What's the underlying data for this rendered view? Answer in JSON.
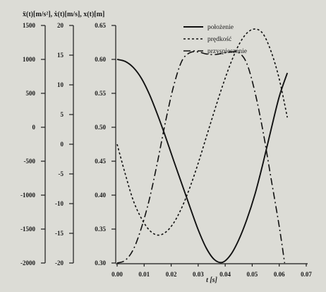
{
  "chart_data": {
    "type": "line",
    "xlabel": "t [s]",
    "ylabel_combined": "ẍ(t)[m/s²], ẋ(t)[m/s], x(t)[m]",
    "xlim": [
      0.0,
      0.07
    ],
    "x_ticks": [
      "0.00",
      "0.01",
      "0.02",
      "0.03",
      "0.04",
      "0.05",
      "0.06",
      "0.07"
    ],
    "axes": [
      {
        "id": "acc",
        "unit": "ẍ(t)[m/s²]",
        "range": [
          -2000,
          1500
        ],
        "ticks": [
          "1500",
          "1000",
          "500",
          "0",
          "-500",
          "-1000",
          "-1500",
          "-2000"
        ]
      },
      {
        "id": "vel",
        "unit": "ẋ(t)[m/s]",
        "range": [
          -20,
          20
        ],
        "ticks": [
          "20",
          "15",
          "10",
          "5",
          "0",
          "-5",
          "-10",
          "-15",
          "-20"
        ]
      },
      {
        "id": "pos",
        "unit": "x(t)[m]",
        "range": [
          0.3,
          0.65
        ],
        "ticks": [
          "0.65",
          "0.60",
          "0.55",
          "0.50",
          "0.45",
          "0.40",
          "0.35",
          "0.30"
        ]
      }
    ],
    "grid": false,
    "legend_position": "top-right",
    "series": [
      {
        "name": "położenie",
        "axis": "pos",
        "style": "solid",
        "x": [
          0.0,
          0.003,
          0.006,
          0.009,
          0.012,
          0.015,
          0.018,
          0.021,
          0.024,
          0.027,
          0.03,
          0.033,
          0.036,
          0.039,
          0.042,
          0.045,
          0.048,
          0.051,
          0.054,
          0.057,
          0.06,
          0.063
        ],
        "y": [
          0.6,
          0.597,
          0.588,
          0.572,
          0.548,
          0.518,
          0.485,
          0.45,
          0.416,
          0.382,
          0.349,
          0.322,
          0.305,
          0.301,
          0.312,
          0.334,
          0.364,
          0.401,
          0.447,
          0.497,
          0.545,
          0.58
        ]
      },
      {
        "name": "prędkość",
        "axis": "vel",
        "style": "dashed",
        "x": [
          0.0,
          0.003,
          0.006,
          0.009,
          0.012,
          0.015,
          0.018,
          0.021,
          0.024,
          0.027,
          0.03,
          0.033,
          0.036,
          0.039,
          0.042,
          0.045,
          0.048,
          0.051,
          0.054,
          0.057,
          0.06,
          0.063
        ],
        "y": [
          0.0,
          -5.0,
          -9.5,
          -12.5,
          -14.5,
          -15.3,
          -14.8,
          -13.2,
          -10.6,
          -7.2,
          -3.2,
          1.2,
          5.6,
          9.8,
          13.6,
          16.7,
          18.7,
          19.4,
          18.6,
          15.6,
          11.0,
          4.5
        ]
      },
      {
        "name": "przyspieszenie",
        "axis": "acc",
        "style": "dashdot",
        "x": [
          0.0,
          0.003,
          0.006,
          0.009,
          0.012,
          0.015,
          0.018,
          0.021,
          0.024,
          0.027,
          0.03,
          0.033,
          0.036,
          0.039,
          0.042,
          0.045,
          0.048,
          0.051,
          0.054,
          0.057,
          0.06,
          0.062
        ],
        "y": [
          -2000,
          -1960,
          -1800,
          -1480,
          -1050,
          -500,
          100,
          620,
          980,
          1100,
          1110,
          1080,
          1070,
          1090,
          1110,
          1100,
          940,
          520,
          -60,
          -760,
          -1460,
          -2000
        ]
      }
    ]
  }
}
